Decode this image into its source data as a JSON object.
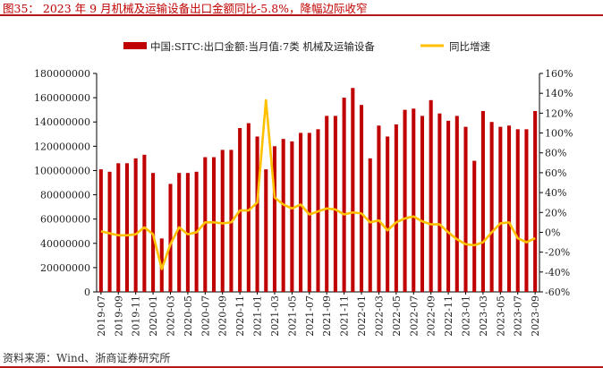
{
  "header": {
    "title": "图35： 2023 年 9 月机械及运输设备出口金额同比-5.8%，降幅边际收窄"
  },
  "footer": {
    "source": "资料来源：Wind、浙商证券研究所"
  },
  "colors": {
    "bar": "#c00000",
    "line": "#ffc000",
    "rule": "#b31b1b",
    "title": "#c00000"
  },
  "chart_data": {
    "type": "bar",
    "title": "",
    "xlabel": "",
    "ylabel": "",
    "legend_position": "top",
    "grid": false,
    "ylim": [
      0,
      180000000
    ],
    "y2lim": [
      -60,
      160
    ],
    "yticks": [
      "0",
      "20000000",
      "40000000",
      "60000000",
      "80000000",
      "100000000",
      "120000000",
      "140000000",
      "160000000",
      "180000000"
    ],
    "y2ticks": [
      "-60%",
      "-40%",
      "-20%",
      "0%",
      "20%",
      "40%",
      "60%",
      "80%",
      "100%",
      "120%",
      "140%",
      "160%"
    ],
    "xticks": [
      "2019-07",
      "2019-09",
      "2019-11",
      "2020-01",
      "2020-03",
      "2020-05",
      "2020-07",
      "2020-09",
      "2020-11",
      "2021-01",
      "2021-03",
      "2021-05",
      "2021-07",
      "2021-09",
      "2021-11",
      "2022-01",
      "2022-03",
      "2022-05",
      "2022-07",
      "2022-09",
      "2022-11",
      "2023-01",
      "2023-03",
      "2023-05",
      "2023-07",
      "2023-09"
    ],
    "categories": [
      "2019-07",
      "2019-08",
      "2019-09",
      "2019-10",
      "2019-11",
      "2019-12",
      "2020-01",
      "2020-02",
      "2020-03",
      "2020-04",
      "2020-05",
      "2020-06",
      "2020-07",
      "2020-08",
      "2020-09",
      "2020-10",
      "2020-11",
      "2020-12",
      "2021-01",
      "2021-02",
      "2021-03",
      "2021-04",
      "2021-05",
      "2021-06",
      "2021-07",
      "2021-08",
      "2021-09",
      "2021-10",
      "2021-11",
      "2021-12",
      "2022-01",
      "2022-02",
      "2022-03",
      "2022-04",
      "2022-05",
      "2022-06",
      "2022-07",
      "2022-08",
      "2022-09",
      "2022-10",
      "2022-11",
      "2022-12",
      "2023-01",
      "2023-02",
      "2023-03",
      "2023-04",
      "2023-05",
      "2023-06",
      "2023-07",
      "2023-08",
      "2023-09"
    ],
    "series": [
      {
        "name": "中国:SITC:出口金额:当月值:7类 机械及运输设备",
        "type": "bar",
        "axis": "left",
        "values": [
          101000000,
          99000000,
          106000000,
          106000000,
          110000000,
          113000000,
          98000000,
          44000000,
          89000000,
          98000000,
          98000000,
          99000000,
          111000000,
          111000000,
          117000000,
          117000000,
          135000000,
          139000000,
          128000000,
          101000000,
          120000000,
          126000000,
          124000000,
          131000000,
          131000000,
          134000000,
          145000000,
          145000000,
          160000000,
          168000000,
          154000000,
          110000000,
          137000000,
          128000000,
          138000000,
          150000000,
          151000000,
          145000000,
          158000000,
          147000000,
          141000000,
          145000000,
          136000000,
          108000000,
          149000000,
          140000000,
          136000000,
          137000000,
          134000000,
          134000000,
          149000000
        ]
      },
      {
        "name": "同比增速",
        "type": "line",
        "axis": "right",
        "values": [
          1,
          -1,
          -3,
          -3,
          -2,
          5,
          -2,
          -37,
          -12,
          5,
          -2,
          0,
          10,
          10,
          9,
          10,
          22,
          22,
          30,
          133,
          35,
          28,
          24,
          28,
          18,
          21,
          24,
          23,
          18,
          20,
          19,
          10,
          12,
          2,
          10,
          14,
          16,
          11,
          8,
          8,
          0,
          -7,
          -12,
          -13,
          -10,
          0,
          9,
          10,
          -6,
          -10,
          -6
        ]
      }
    ]
  }
}
